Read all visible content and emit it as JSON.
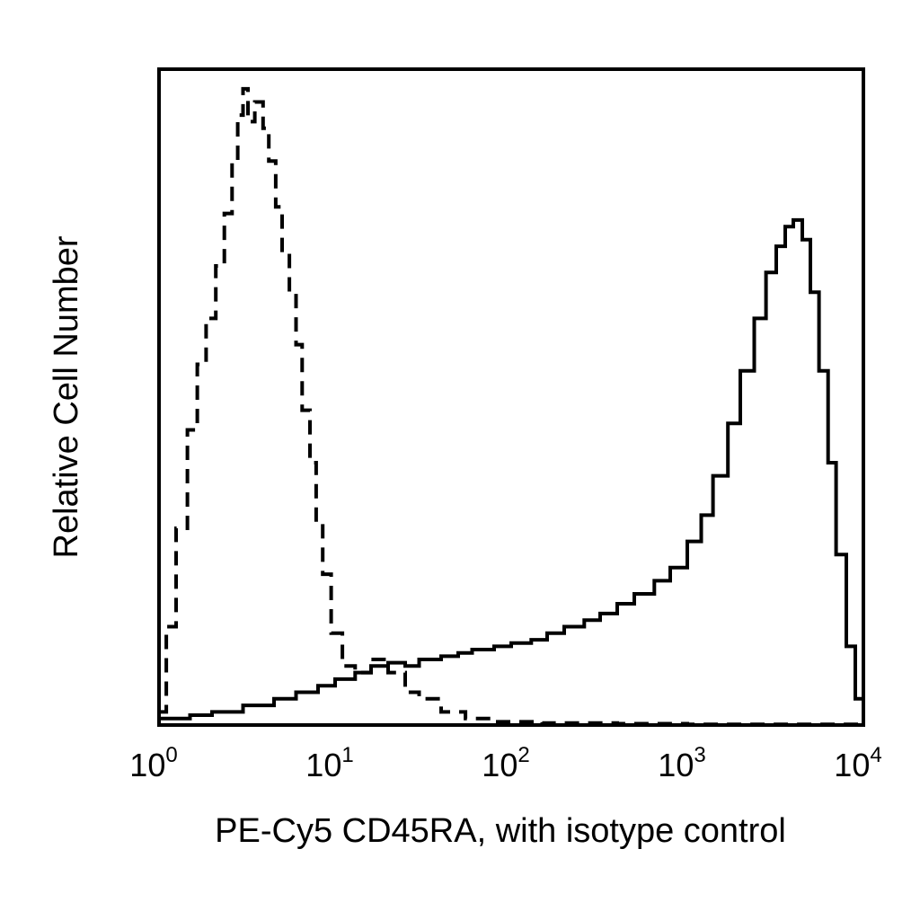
{
  "chart_data": {
    "type": "line",
    "xlabel": "PE-Cy5 CD45RA, with isotype control",
    "ylabel": "Relative Cell Number",
    "x_scale": "log",
    "xlim": [
      1,
      10000
    ],
    "ylim": [
      0,
      100
    ],
    "grid": false,
    "x_ticks": [
      {
        "base": "10",
        "exp": "0"
      },
      {
        "base": "10",
        "exp": "1"
      },
      {
        "base": "10",
        "exp": "2"
      },
      {
        "base": "10",
        "exp": "3"
      },
      {
        "base": "10",
        "exp": "4"
      }
    ],
    "series": [
      {
        "style": "dashed",
        "color": "#000000",
        "points": [
          [
            1.0,
            2
          ],
          [
            1.1,
            15
          ],
          [
            1.25,
            30
          ],
          [
            1.45,
            45
          ],
          [
            1.65,
            55
          ],
          [
            1.85,
            62
          ],
          [
            2.1,
            70
          ],
          [
            2.35,
            78
          ],
          [
            2.6,
            86
          ],
          [
            2.8,
            93
          ],
          [
            3.0,
            97
          ],
          [
            3.2,
            92
          ],
          [
            3.5,
            95
          ],
          [
            3.9,
            91
          ],
          [
            4.2,
            86
          ],
          [
            4.6,
            79
          ],
          [
            5.0,
            72
          ],
          [
            5.5,
            66
          ],
          [
            6.0,
            58
          ],
          [
            6.5,
            48
          ],
          [
            7.2,
            40
          ],
          [
            7.8,
            31
          ],
          [
            8.5,
            23
          ],
          [
            9.5,
            14
          ],
          [
            11,
            9
          ],
          [
            13,
            8
          ],
          [
            16,
            10
          ],
          [
            20,
            8
          ],
          [
            25,
            5
          ],
          [
            30,
            4
          ],
          [
            40,
            2
          ],
          [
            55,
            1
          ],
          [
            80,
            0.5
          ],
          [
            150,
            0.3
          ],
          [
            400,
            0.2
          ],
          [
            1000,
            0.1
          ],
          [
            10000,
            0
          ]
        ]
      },
      {
        "style": "solid",
        "color": "#000000",
        "points": [
          [
            1.0,
            1
          ],
          [
            1.5,
            1.5
          ],
          [
            2.0,
            2
          ],
          [
            3.0,
            3
          ],
          [
            4.5,
            4
          ],
          [
            6.0,
            5
          ],
          [
            8.0,
            6
          ],
          [
            10,
            7
          ],
          [
            13,
            8
          ],
          [
            16,
            9
          ],
          [
            20,
            9.5
          ],
          [
            25,
            9
          ],
          [
            30,
            10
          ],
          [
            40,
            10.5
          ],
          [
            50,
            11
          ],
          [
            60,
            11.5
          ],
          [
            80,
            12
          ],
          [
            100,
            12.5
          ],
          [
            130,
            13
          ],
          [
            160,
            14
          ],
          [
            200,
            15
          ],
          [
            260,
            16
          ],
          [
            320,
            17
          ],
          [
            400,
            18.5
          ],
          [
            500,
            20
          ],
          [
            650,
            22
          ],
          [
            800,
            24
          ],
          [
            1000,
            28
          ],
          [
            1200,
            32
          ],
          [
            1400,
            38
          ],
          [
            1700,
            46
          ],
          [
            2000,
            54
          ],
          [
            2400,
            62
          ],
          [
            2800,
            69
          ],
          [
            3200,
            73
          ],
          [
            3600,
            76
          ],
          [
            4000,
            77
          ],
          [
            4500,
            74
          ],
          [
            5000,
            66
          ],
          [
            5600,
            54
          ],
          [
            6300,
            40
          ],
          [
            7000,
            26
          ],
          [
            8000,
            12
          ],
          [
            9000,
            4
          ],
          [
            10000,
            1
          ]
        ]
      }
    ]
  }
}
